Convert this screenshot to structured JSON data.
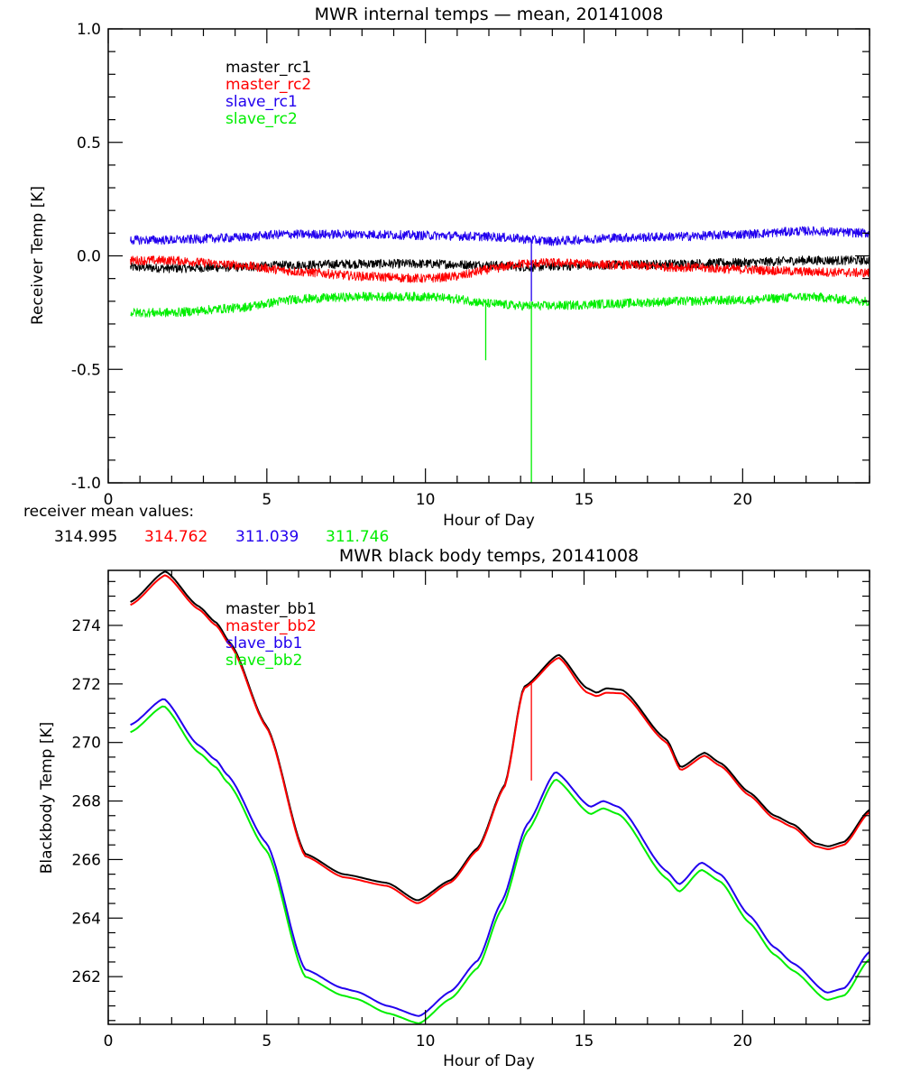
{
  "colors": {
    "black": "#000000",
    "red": "#ff0000",
    "blue": "#2200ee",
    "green": "#00ee00"
  },
  "receiver_mean": {
    "label": "receiver mean values:",
    "values": [
      {
        "text": "314.995",
        "color": "#000000"
      },
      {
        "text": "314.762",
        "color": "#ff0000"
      },
      {
        "text": "311.039",
        "color": "#2200ee"
      },
      {
        "text": "311.746",
        "color": "#00ee00"
      }
    ]
  },
  "chart_data": [
    {
      "type": "line",
      "title": "MWR internal temps — mean, 20141008",
      "xlabel": "Hour of Day",
      "ylabel": "Receiver Temp [K]",
      "xlim": [
        0,
        24
      ],
      "ylim": [
        -1.0,
        1.0
      ],
      "xticks": [
        "0",
        "5",
        "10",
        "15",
        "20"
      ],
      "xtick_values": [
        0,
        5,
        10,
        15,
        20
      ],
      "yticks": [
        "-1.0",
        "-0.5",
        "0.0",
        "0.5",
        "1.0"
      ],
      "ytick_values": [
        -1.0,
        -0.5,
        0.0,
        0.5,
        1.0
      ],
      "x_minor_step": 1,
      "y_minor_step": 0.1,
      "grid": false,
      "legend": {
        "placement": "top-left",
        "entries": [
          "master_rc1",
          "master_rc2",
          "slave_rc1",
          "slave_rc2"
        ]
      },
      "noise_amplitude": 0.02,
      "series": [
        {
          "name": "master_rc1",
          "color": "#000000",
          "x": [
            0.7,
            2,
            4,
            6,
            8,
            10,
            12,
            13.3,
            14,
            16,
            18,
            20,
            22,
            24
          ],
          "y": [
            -0.05,
            -0.055,
            -0.05,
            -0.04,
            -0.035,
            -0.035,
            -0.04,
            -0.05,
            -0.045,
            -0.04,
            -0.035,
            -0.03,
            -0.02,
            -0.02
          ]
        },
        {
          "name": "master_rc2",
          "color": "#ff0000",
          "x": [
            0.7,
            2,
            4,
            6,
            8,
            10,
            11,
            12,
            13,
            14,
            16,
            18,
            20,
            22,
            24
          ],
          "y": [
            -0.02,
            -0.02,
            -0.04,
            -0.07,
            -0.09,
            -0.1,
            -0.09,
            -0.06,
            -0.035,
            -0.03,
            -0.04,
            -0.05,
            -0.06,
            -0.07,
            -0.075
          ]
        },
        {
          "name": "slave_rc1",
          "color": "#2200ee",
          "x": [
            0.7,
            2,
            4,
            5.5,
            8,
            10,
            12,
            14,
            16,
            18,
            20,
            22,
            24
          ],
          "y": [
            0.07,
            0.07,
            0.08,
            0.095,
            0.095,
            0.09,
            0.085,
            0.065,
            0.08,
            0.085,
            0.095,
            0.11,
            0.1
          ],
          "spikes": [
            {
              "x": 13.34,
              "y": -0.2
            }
          ]
        },
        {
          "name": "slave_rc2",
          "color": "#00ee00",
          "x": [
            0.7,
            2,
            4,
            6,
            8,
            10,
            11,
            12,
            13,
            14,
            16,
            18,
            20,
            22,
            24
          ],
          "y": [
            -0.25,
            -0.25,
            -0.23,
            -0.19,
            -0.18,
            -0.18,
            -0.19,
            -0.21,
            -0.22,
            -0.22,
            -0.21,
            -0.2,
            -0.195,
            -0.18,
            -0.2
          ],
          "spikes": [
            {
              "x": 11.9,
              "y": -0.46
            },
            {
              "x": 13.34,
              "y": -1.0
            }
          ]
        }
      ]
    },
    {
      "type": "line",
      "title": "MWR black body temps, 20141008",
      "xlabel": "Hour of Day",
      "ylabel": "Blackbody Temp [K]",
      "xlim": [
        0,
        24
      ],
      "ylim": [
        260.37,
        275.88
      ],
      "xticks": [
        "0",
        "5",
        "10",
        "15",
        "20"
      ],
      "xtick_values": [
        0,
        5,
        10,
        15,
        20
      ],
      "yticks": [
        "262",
        "264",
        "266",
        "268",
        "270",
        "272",
        "274"
      ],
      "ytick_values": [
        262,
        264,
        266,
        268,
        270,
        272,
        274
      ],
      "x_minor_step": 1,
      "y_minor_step": 0.5,
      "grid": false,
      "legend": {
        "placement": "top-left",
        "entries": [
          "master_bb1",
          "master_bb2",
          "slave_bb1",
          "slave_bb2"
        ]
      },
      "series": [
        {
          "name": "master_bb1",
          "color": "#000000",
          "x": [
            0.7,
            1.8,
            2.85,
            3.4,
            3.85,
            5.0,
            6.2,
            7.4,
            8.8,
            9.75,
            10.8,
            11.65,
            12.5,
            13.1,
            14.2,
            15.1,
            15.4,
            15.7,
            16.2,
            17.6,
            18.05,
            18.8,
            19.3,
            20.2,
            21.0,
            21.6,
            22.3,
            22.7,
            23.2,
            24.0
          ],
          "y": [
            274.8,
            275.85,
            274.65,
            274.1,
            273.4,
            270.55,
            266.2,
            265.5,
            265.2,
            264.6,
            265.3,
            266.4,
            268.55,
            271.9,
            273.0,
            271.85,
            271.7,
            271.85,
            271.8,
            270.1,
            269.15,
            269.65,
            269.3,
            268.3,
            267.5,
            267.2,
            266.55,
            266.45,
            266.6,
            267.7
          ]
        },
        {
          "name": "master_bb2",
          "color": "#ff0000",
          "x": [
            0.7,
            1.8,
            2.85,
            3.4,
            3.85,
            5.0,
            6.2,
            7.4,
            8.8,
            9.75,
            10.8,
            11.65,
            12.5,
            13.1,
            14.2,
            15.1,
            15.4,
            15.7,
            16.2,
            17.6,
            18.05,
            18.8,
            19.3,
            20.2,
            21.0,
            21.6,
            22.3,
            22.7,
            23.2,
            24.0
          ],
          "y": [
            274.7,
            275.72,
            274.55,
            274.0,
            273.32,
            270.5,
            266.12,
            265.4,
            265.1,
            264.5,
            265.22,
            266.33,
            268.5,
            271.85,
            272.9,
            271.7,
            271.58,
            271.7,
            271.68,
            270.0,
            269.05,
            269.55,
            269.2,
            268.2,
            267.4,
            267.1,
            266.45,
            266.35,
            266.5,
            267.62
          ],
          "spikes": [
            {
              "x": 13.34,
              "y": 268.7
            }
          ]
        },
        {
          "name": "slave_bb1",
          "color": "#2200ee",
          "x": [
            0.7,
            1.75,
            2.85,
            3.4,
            3.75,
            5.0,
            6.2,
            7.4,
            7.8,
            8.8,
            9.8,
            10.8,
            11.65,
            12.4,
            13.2,
            14.1,
            15.2,
            15.6,
            16.1,
            17.6,
            18.0,
            18.7,
            19.3,
            20.2,
            21.0,
            21.6,
            22.65,
            23.2,
            24.0
          ],
          "y": [
            270.6,
            271.5,
            269.9,
            269.4,
            268.9,
            266.55,
            262.25,
            261.6,
            261.5,
            261.0,
            260.65,
            261.5,
            262.55,
            264.55,
            267.2,
            269.0,
            267.8,
            268.0,
            267.8,
            265.6,
            265.15,
            265.9,
            265.5,
            264.1,
            263.0,
            262.45,
            261.45,
            261.6,
            262.85
          ],
          "spikes": [
            {
              "x": 13.34,
              "y": 267.4
            }
          ]
        },
        {
          "name": "slave_bb2",
          "color": "#00ee00",
          "x": [
            0.7,
            1.75,
            2.85,
            3.4,
            3.75,
            5.0,
            6.2,
            7.4,
            7.8,
            8.8,
            9.8,
            10.8,
            11.65,
            12.4,
            13.2,
            14.1,
            15.2,
            15.6,
            16.1,
            17.6,
            18.0,
            18.7,
            19.3,
            20.2,
            21.0,
            21.6,
            22.65,
            23.2,
            24.0
          ],
          "y": [
            270.35,
            271.25,
            269.65,
            269.15,
            268.65,
            266.3,
            262.0,
            261.35,
            261.25,
            260.75,
            260.4,
            261.25,
            262.3,
            264.3,
            266.95,
            268.75,
            267.55,
            267.75,
            267.55,
            265.35,
            264.9,
            265.65,
            265.25,
            263.85,
            262.75,
            262.2,
            261.2,
            261.35,
            262.6
          ]
        }
      ]
    }
  ]
}
